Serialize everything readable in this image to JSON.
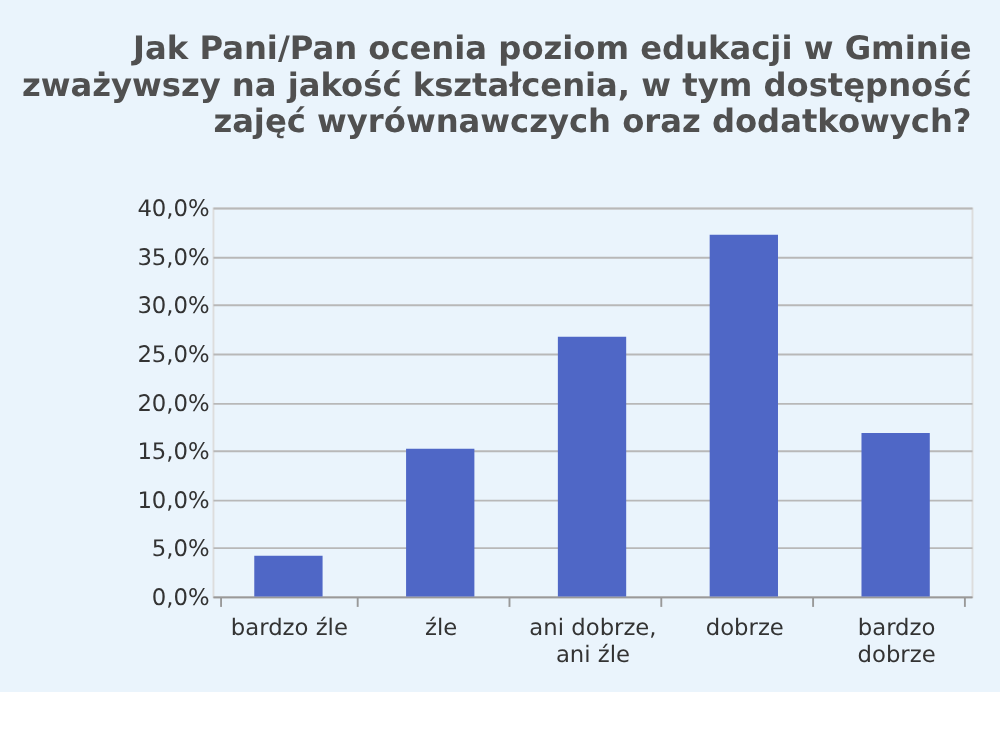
{
  "chart_data": {
    "type": "bar",
    "title": "Jak Pani/Pan ocenia poziom edukacji w Gminie zważywszy na jakość kształcenia, w tym dostępność zajęć wyrównawczych oraz dodatkowych?",
    "categories": [
      "bardzo źle",
      "źle",
      "ani dobrze, ani źle",
      "dobrze",
      "bardzo dobrze"
    ],
    "values": [
      4.2,
      15.2,
      26.7,
      37.2,
      16.8
    ],
    "color": "#4f67c6",
    "ylim": [
      0,
      40
    ],
    "yticks": [
      {
        "value": 0,
        "label": "0,0%"
      },
      {
        "value": 5,
        "label": "5,0%"
      },
      {
        "value": 10,
        "label": "10,0%"
      },
      {
        "value": 15,
        "label": "15,0%"
      },
      {
        "value": 20,
        "label": "20,0%"
      },
      {
        "value": 25,
        "label": "25,0%"
      },
      {
        "value": 30,
        "label": "30,0%"
      },
      {
        "value": 35,
        "label": "35,0%"
      },
      {
        "value": 40,
        "label": "40,0%"
      }
    ],
    "grid": "y"
  }
}
